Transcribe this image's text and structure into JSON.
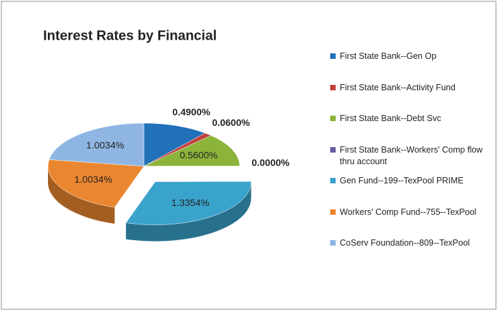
{
  "chart_data": {
    "type": "pie3d",
    "title": "Interest Rates by Financial",
    "categories": [
      "First State Bank--Gen Op",
      "First State Bank--Activity Fund",
      "First State Bank--Debt Svc",
      "First State Bank--Workers' Comp flow thru account",
      "Gen Fund--199--TexPool PRIME",
      "Workers' Comp Fund--755--TexPool",
      "CoServ Foundation--809--TexPool"
    ],
    "values": [
      0.49,
      0.06,
      0.56,
      0,
      1.3354,
      1.0034,
      1.0034
    ],
    "value_labels": [
      "0.4900%",
      "0.0600%",
      "0.5600%",
      "0.0000%",
      "1.3354%",
      "1.0034%",
      "1.0034%"
    ],
    "colors": [
      "#2170b8",
      "#c0413e",
      "#8cb43a",
      "#6b5aa3",
      "#3aa3cc",
      "#eb8630",
      "#8fb6e3"
    ],
    "exploded": [
      4
    ],
    "legend": "right"
  }
}
